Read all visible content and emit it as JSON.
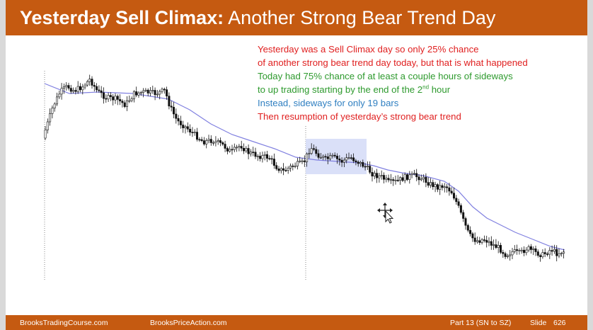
{
  "title": {
    "bold": "Yesterday Sell Climax:",
    "rest": "Another Strong Bear Trend Day"
  },
  "notes": [
    {
      "text": "Yesterday was a Sell Climax day so only 25% chance",
      "color": "#e02020"
    },
    {
      "text": "of another strong bear trend day today, but that is what happened",
      "color": "#e02020"
    },
    {
      "text": "Today had 75% chance of at least a couple hours of sideways",
      "color": "#2e9a2e"
    },
    {
      "text_before": "to up trading starting by the end of the 2",
      "sup": "nd",
      "text_after": " hour",
      "color": "#2e9a2e"
    },
    {
      "text": "Instead, sideways for only 19 bars",
      "color": "#2f7fc1"
    },
    {
      "text": "Then resumption of yesterday’s strong bear trend",
      "color": "#e02020"
    }
  ],
  "footer": {
    "site1": "BrooksTradingCourse.com",
    "site2": "BrooksPriceAction.com",
    "part": "Part 13 (SN to SZ)",
    "slide_label": "Slide",
    "slide_number": "626"
  },
  "colors": {
    "brand": "#c55a11",
    "ema": "#8080e0",
    "highlight": "#d6ddf7"
  },
  "icons": {
    "cursor": "move-cursor-icon"
  }
}
